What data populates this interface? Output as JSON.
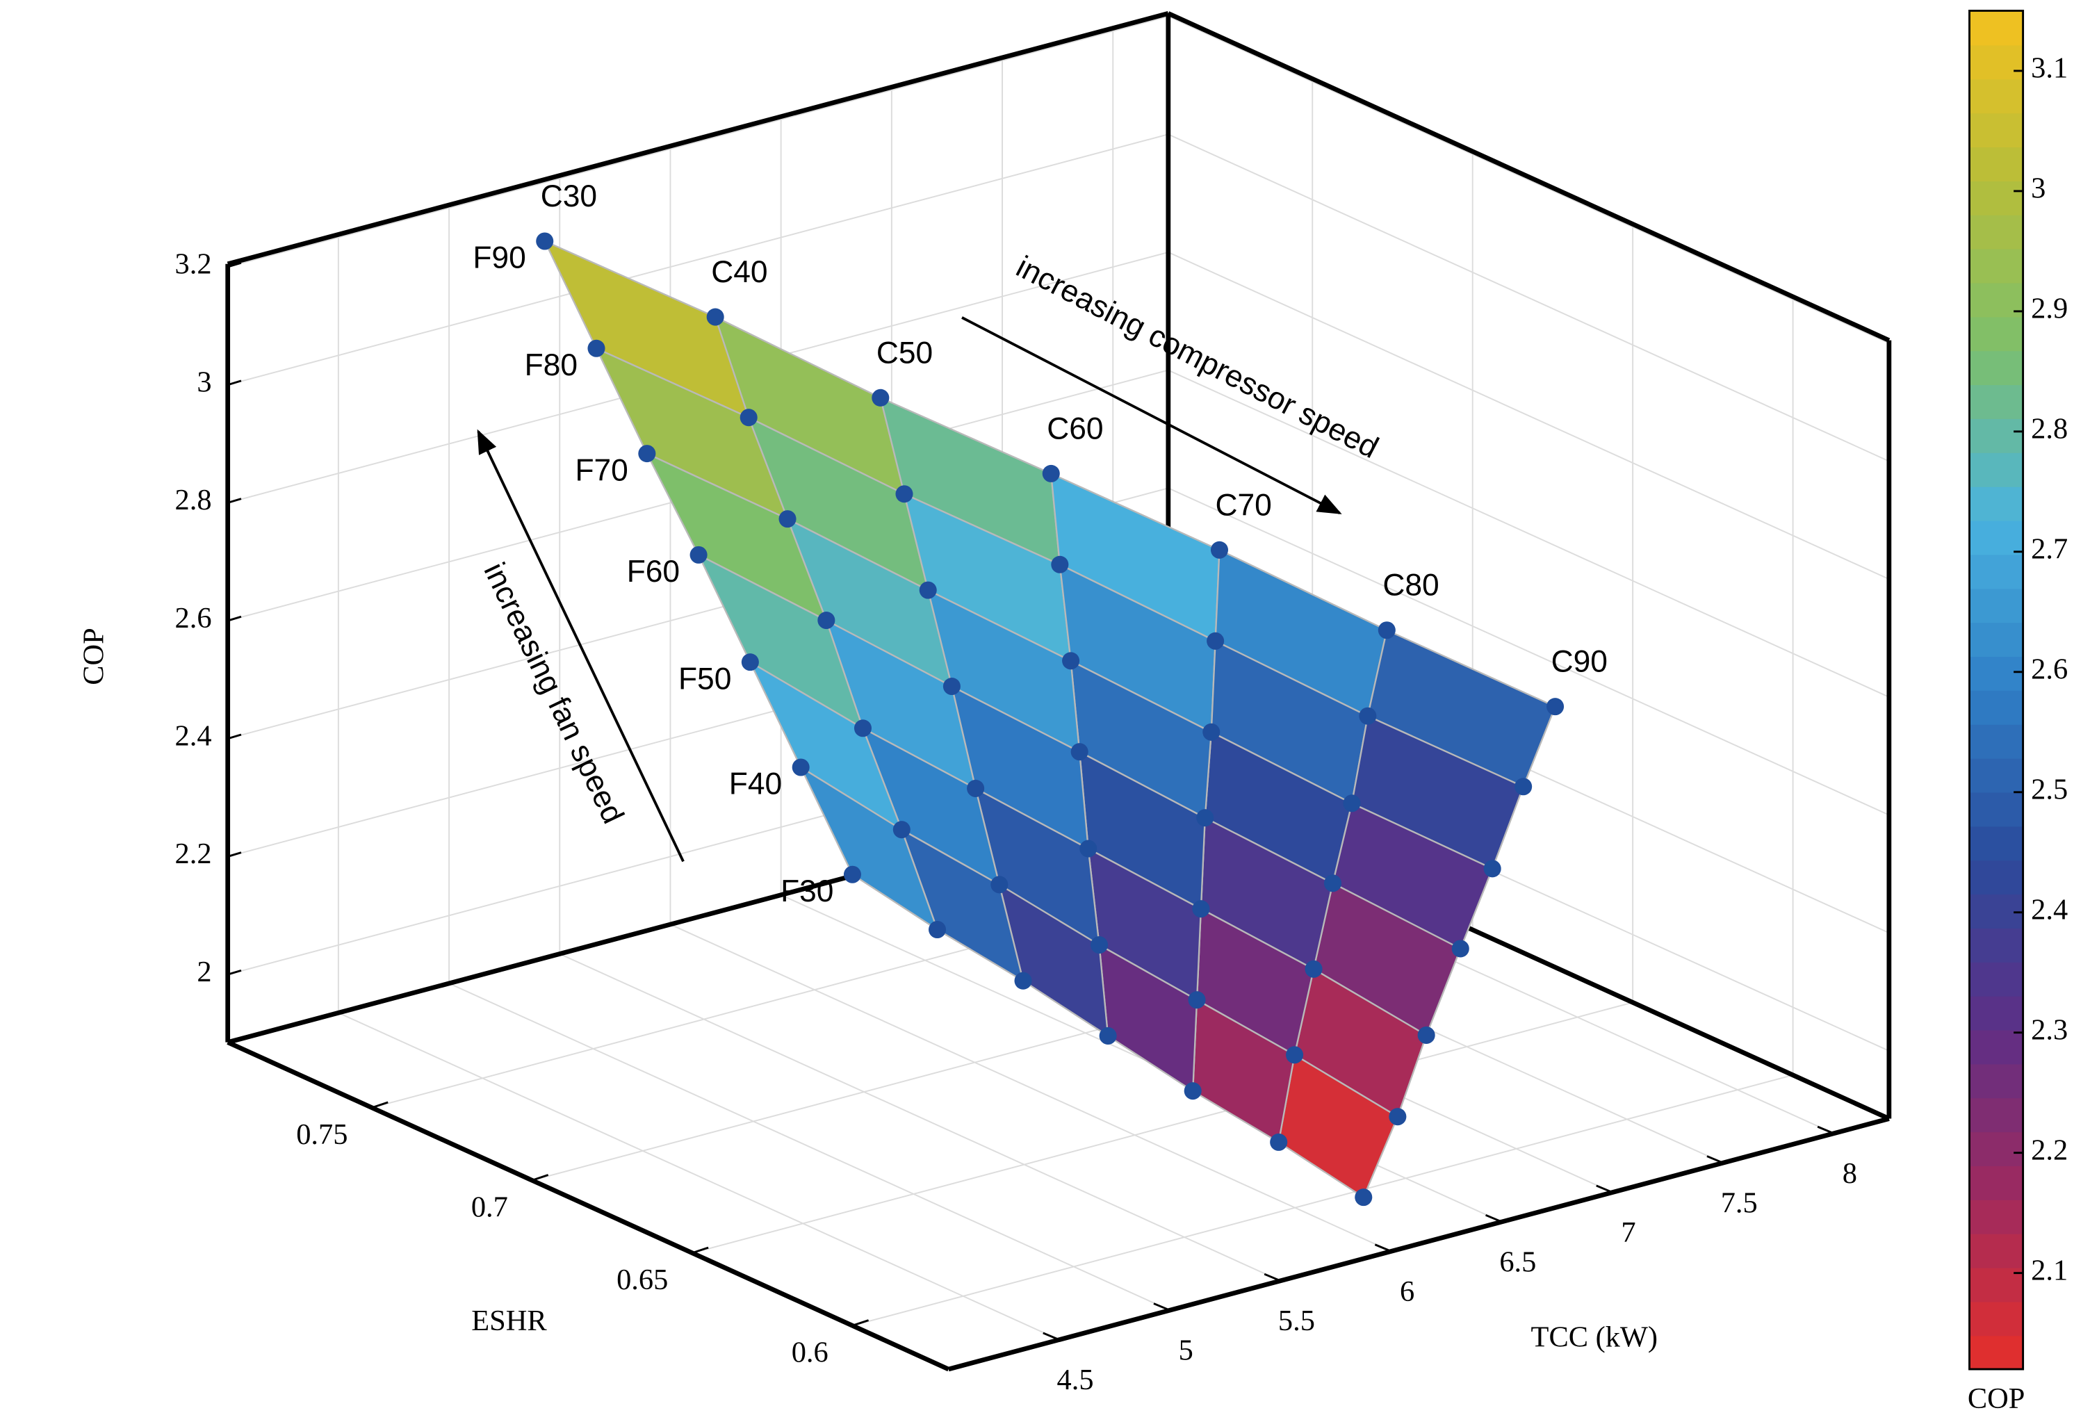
{
  "chart_data": {
    "type": "surface3d",
    "xlabel": "TCC (kW)",
    "ylabel": "ESHR",
    "zlabel": "COP",
    "xlim": [
      4.0,
      8.25
    ],
    "ylim": [
      0.57,
      0.795
    ],
    "zlim": [
      1.885,
      3.205
    ],
    "xticks": [
      4.5,
      5,
      5.5,
      6,
      6.5,
      7,
      7.5,
      8
    ],
    "yticks": [
      0.6,
      0.65,
      0.7,
      0.75
    ],
    "zticks": [
      2,
      2.2,
      2.4,
      2.6,
      2.8,
      3,
      3.2
    ],
    "grid": true,
    "fan_labels": [
      "F30",
      "F40",
      "F50",
      "F60",
      "F70",
      "F80",
      "F90"
    ],
    "compressor_labels": [
      "C30",
      "C40",
      "C50",
      "C60",
      "C70",
      "C80",
      "C90"
    ],
    "x": [
      [
        4.0,
        4.34,
        4.67,
        5.01,
        5.35,
        5.68,
        6.02
      ],
      [
        4.23,
        4.57,
        4.91,
        5.26,
        5.6,
        5.94,
        6.29
      ],
      [
        4.45,
        4.8,
        5.15,
        5.5,
        5.85,
        6.2,
        6.55
      ],
      [
        4.68,
        5.04,
        5.39,
        5.75,
        6.1,
        6.46,
        6.82
      ],
      [
        4.91,
        5.27,
        5.63,
        6.0,
        6.36,
        6.72,
        7.08
      ],
      [
        5.13,
        5.5,
        5.87,
        6.24,
        6.61,
        6.98,
        7.35
      ],
      [
        5.36,
        5.74,
        6.11,
        6.49,
        6.86,
        7.24,
        7.61
      ]
    ],
    "y": [
      [
        0.6,
        0.597,
        0.593,
        0.59,
        0.587,
        0.583,
        0.58
      ],
      [
        0.632,
        0.624,
        0.617,
        0.61,
        0.603,
        0.596,
        0.588
      ],
      [
        0.663,
        0.652,
        0.641,
        0.63,
        0.619,
        0.608,
        0.597
      ],
      [
        0.695,
        0.68,
        0.665,
        0.65,
        0.635,
        0.62,
        0.605
      ],
      [
        0.727,
        0.708,
        0.689,
        0.67,
        0.651,
        0.632,
        0.613
      ],
      [
        0.758,
        0.736,
        0.713,
        0.69,
        0.667,
        0.645,
        0.622
      ],
      [
        0.79,
        0.763,
        0.737,
        0.71,
        0.683,
        0.657,
        0.63
      ]
    ],
    "z": [
      [
        2.65,
        2.53,
        2.42,
        2.3,
        2.18,
        2.07,
        1.95
      ],
      [
        2.73,
        2.61,
        2.5,
        2.38,
        2.27,
        2.16,
        2.04
      ],
      [
        2.81,
        2.69,
        2.58,
        2.47,
        2.36,
        2.25,
        2.13
      ],
      [
        2.89,
        2.78,
        2.67,
        2.56,
        2.45,
        2.34,
        2.23
      ],
      [
        2.96,
        2.86,
        2.75,
        2.64,
        2.53,
        2.42,
        2.32
      ],
      [
        3.04,
        2.94,
        2.83,
        2.73,
        2.62,
        2.51,
        2.41
      ],
      [
        3.12,
        3.02,
        2.91,
        2.81,
        2.71,
        2.6,
        2.5
      ]
    ],
    "point_color": "#1f4e9c",
    "colormap": [
      "#e6302a",
      "#a02a5e",
      "#5e2f86",
      "#2b4b9c",
      "#2f7fc6",
      "#4ab3df",
      "#7cbf6c",
      "#b6be3a",
      "#f4c11f"
    ],
    "clim": [
      2.02,
      3.15
    ],
    "cticks": [
      2.1,
      2.2,
      2.3,
      2.4,
      2.5,
      2.6,
      2.7,
      2.8,
      2.9,
      3,
      3.1
    ],
    "clabel": "COP",
    "annotations": [
      "increasing compressor speed",
      "increasing fan speed"
    ]
  }
}
